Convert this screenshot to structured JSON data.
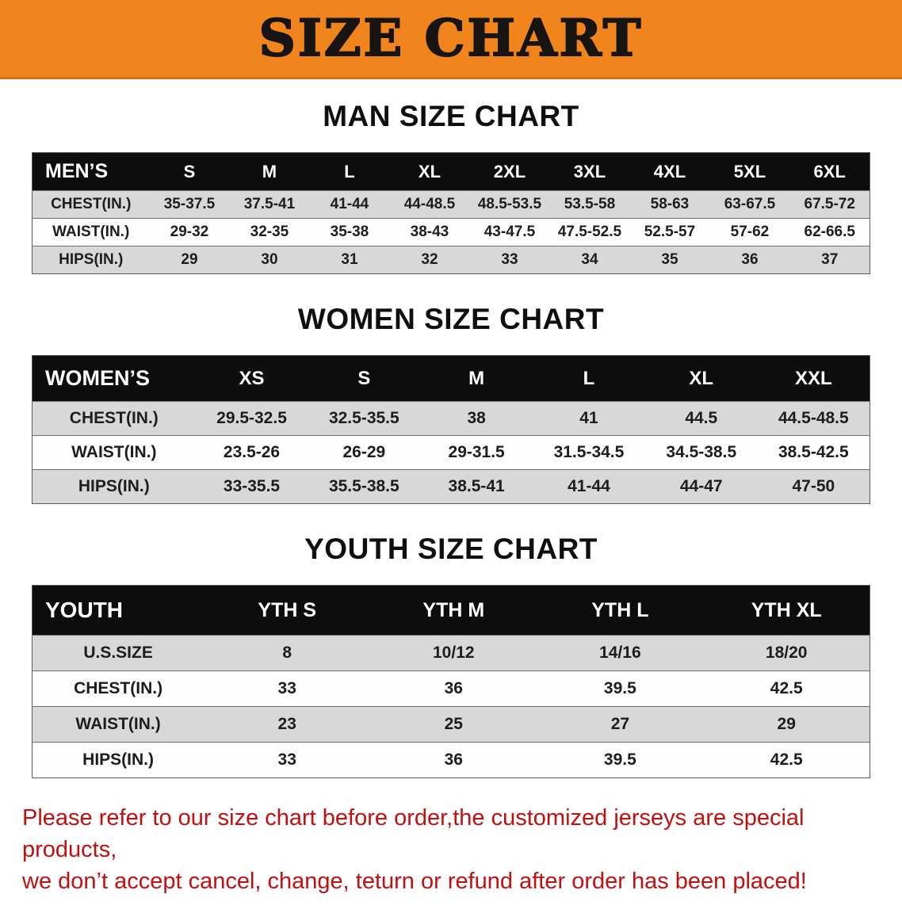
{
  "banner": {
    "title": "SIZE CHART"
  },
  "theme": {
    "banner_bg": "#f1851d",
    "table_header_bg": "#0d0d0d",
    "row_stripe": "#d8d8d8",
    "footer_text": "#c40f0f"
  },
  "sections": [
    {
      "heading": "MAN SIZE CHART",
      "table": {
        "header": [
          "MEN’S",
          "S",
          "M",
          "L",
          "XL",
          "2XL",
          "3XL",
          "4XL",
          "5XL",
          "6XL"
        ],
        "rows": [
          [
            "CHEST(IN.)",
            "35-37.5",
            "37.5-41",
            "41-44",
            "44-48.5",
            "48.5-53.5",
            "53.5-58",
            "58-63",
            "63-67.5",
            "67.5-72"
          ],
          [
            "WAIST(IN.)",
            "29-32",
            "32-35",
            "35-38",
            "38-43",
            "43-47.5",
            "47.5-52.5",
            "52.5-57",
            "57-62",
            "62-66.5"
          ],
          [
            "HIPS(IN.)",
            "29",
            "30",
            "31",
            "32",
            "33",
            "34",
            "35",
            "36",
            "37"
          ]
        ]
      }
    },
    {
      "heading": "WOMEN SIZE CHART",
      "table": {
        "header": [
          "WOMEN’S",
          "XS",
          "S",
          "M",
          "L",
          "XL",
          "XXL"
        ],
        "rows": [
          [
            "CHEST(IN.)",
            "29.5-32.5",
            "32.5-35.5",
            "38",
            "41",
            "44.5",
            "44.5-48.5"
          ],
          [
            "WAIST(IN.)",
            "23.5-26",
            "26-29",
            "29-31.5",
            "31.5-34.5",
            "34.5-38.5",
            "38.5-42.5"
          ],
          [
            "HIPS(IN.)",
            "33-35.5",
            "35.5-38.5",
            "38.5-41",
            "41-44",
            "44-47",
            "47-50"
          ]
        ]
      }
    },
    {
      "heading": "YOUTH SIZE CHART",
      "table": {
        "header": [
          "YOUTH",
          "YTH S",
          "YTH M",
          "YTH L",
          "YTH XL"
        ],
        "rows": [
          [
            "U.S.SIZE",
            "8",
            "10/12",
            "14/16",
            "18/20"
          ],
          [
            "CHEST(IN.)",
            "33",
            "36",
            "39.5",
            "42.5"
          ],
          [
            "WAIST(IN.)",
            "23",
            "25",
            "27",
            "29"
          ],
          [
            "HIPS(IN.)",
            "33",
            "36",
            "39.5",
            "42.5"
          ]
        ]
      }
    }
  ],
  "footer": {
    "line1": "Please refer to our size chart before order,the customized jerseys are special products,",
    "line2": "we don’t accept cancel, change, teturn or refund after order has been placed!"
  }
}
